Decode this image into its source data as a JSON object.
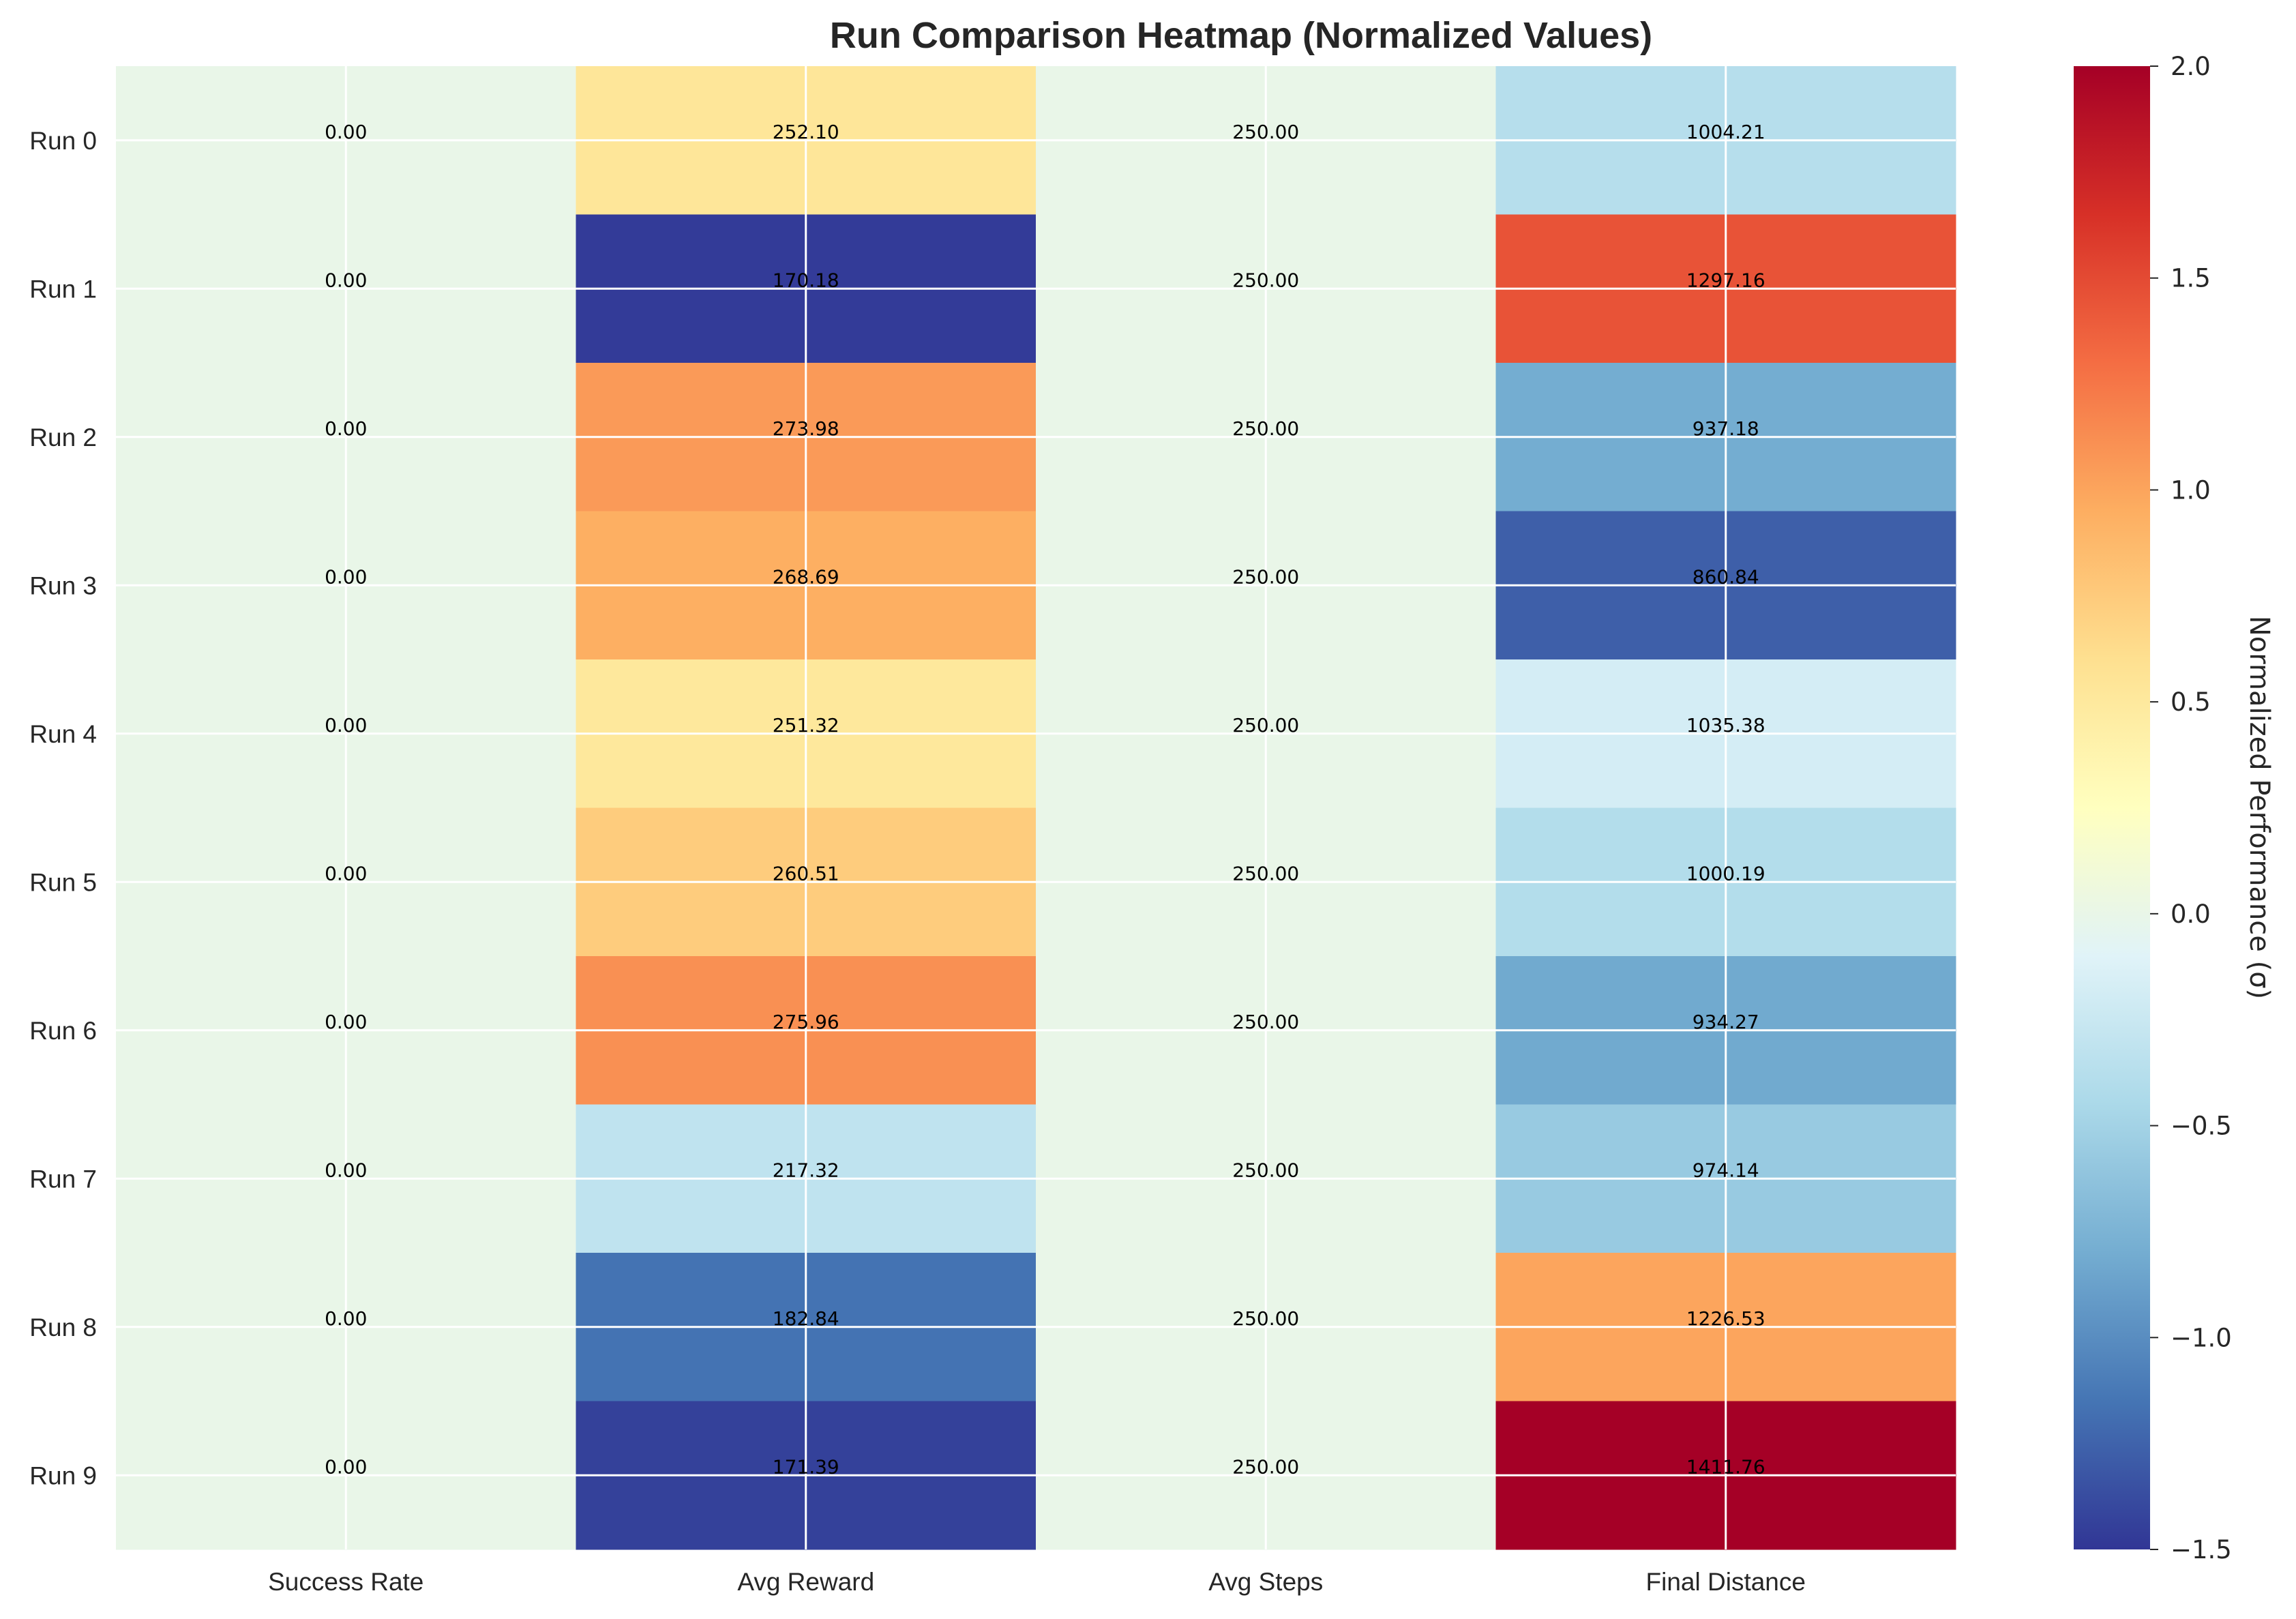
{
  "chart_data": {
    "type": "heatmap",
    "title": "Run Comparison Heatmap (Normalized Values)",
    "xlabel": "",
    "ylabel": "",
    "columns": [
      "Success Rate",
      "Avg Reward",
      "Avg Steps",
      "Final Distance"
    ],
    "rows": [
      "Run 0",
      "Run 1",
      "Run 2",
      "Run 3",
      "Run 4",
      "Run 5",
      "Run 6",
      "Run 7",
      "Run 8",
      "Run 9"
    ],
    "cell_labels": [
      [
        "0.00",
        "252.10",
        "250.00",
        "1004.21"
      ],
      [
        "0.00",
        "170.18",
        "250.00",
        "1297.16"
      ],
      [
        "0.00",
        "273.98",
        "250.00",
        "937.18"
      ],
      [
        "0.00",
        "268.69",
        "250.00",
        "860.84"
      ],
      [
        "0.00",
        "251.32",
        "250.00",
        "1035.38"
      ],
      [
        "0.00",
        "260.51",
        "250.00",
        "1000.19"
      ],
      [
        "0.00",
        "275.96",
        "250.00",
        "934.27"
      ],
      [
        "0.00",
        "217.32",
        "250.00",
        "974.14"
      ],
      [
        "0.00",
        "182.84",
        "250.00",
        "1226.53"
      ],
      [
        "0.00",
        "171.39",
        "250.00",
        "1411.76"
      ]
    ],
    "normalized_values": [
      [
        0.0,
        0.53,
        0.0,
        -0.38
      ],
      [
        0.0,
        -1.47,
        0.0,
        1.45
      ],
      [
        0.0,
        1.06,
        0.0,
        -0.8
      ],
      [
        0.0,
        0.94,
        0.0,
        -1.27
      ],
      [
        0.0,
        0.51,
        0.0,
        -0.18
      ],
      [
        0.0,
        0.74,
        0.0,
        -0.4
      ],
      [
        0.0,
        1.11,
        0.0,
        -0.82
      ],
      [
        0.0,
        -0.32,
        0.0,
        -0.57
      ],
      [
        0.0,
        -1.16,
        0.0,
        1.0
      ],
      [
        0.0,
        -1.44,
        0.0,
        2.0
      ]
    ],
    "colorbar": {
      "label": "Normalized Performance (σ)",
      "range": [
        -1.5,
        2.0
      ],
      "ticks": [
        2.0,
        1.5,
        1.0,
        0.5,
        0.0,
        -0.5,
        -1.0,
        -1.5
      ],
      "tick_labels": [
        "2.0",
        "1.5",
        "1.0",
        "0.5",
        "0.0",
        "−0.5",
        "−1.0",
        "−1.5"
      ],
      "colormap": "RdYlBu_r"
    },
    "grid": true
  },
  "colors": {
    "colormap_stops": [
      "#313695",
      "#4575b4",
      "#74add1",
      "#abd9e9",
      "#e0f3f8",
      "#ffffbf",
      "#fee090",
      "#fdae61",
      "#f46d43",
      "#d73027",
      "#a50026"
    ],
    "grid_line": "#ffffff",
    "text": "#262626"
  }
}
